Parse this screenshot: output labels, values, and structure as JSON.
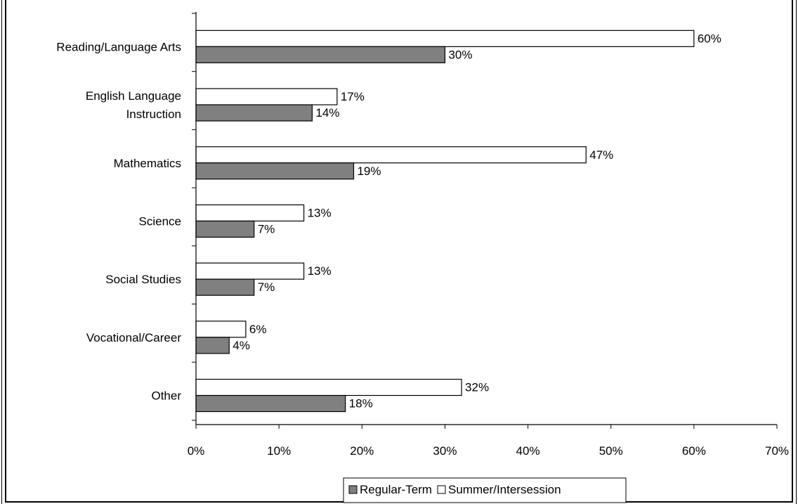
{
  "chart_data": {
    "type": "bar",
    "orientation": "horizontal",
    "categories": [
      [
        "Reading/Language Arts"
      ],
      [
        "English Language",
        "Instruction"
      ],
      [
        "Mathematics"
      ],
      [
        "Science"
      ],
      [
        "Social Studies"
      ],
      [
        "Vocational/Career"
      ],
      [
        "Other"
      ]
    ],
    "series": [
      {
        "name": "Summer/Intersession",
        "color": "#ffffff",
        "values": [
          60,
          17,
          47,
          13,
          13,
          6,
          32
        ]
      },
      {
        "name": "Regular-Term",
        "color": "#808080",
        "values": [
          30,
          14,
          19,
          7,
          7,
          4,
          18
        ]
      }
    ],
    "value_suffix": "%",
    "xlim": [
      0,
      70
    ],
    "xticks": [
      0,
      10,
      20,
      30,
      40,
      50,
      60,
      70
    ],
    "xtick_labels": [
      "0%",
      "10%",
      "20%",
      "30%",
      "40%",
      "50%",
      "60%",
      "70%"
    ],
    "legend": {
      "placement": "bottom-center",
      "entries": [
        {
          "label": "Regular-Term",
          "color": "#808080"
        },
        {
          "label": "Summer/Intersession",
          "color": "#ffffff"
        }
      ]
    },
    "grid": false
  }
}
